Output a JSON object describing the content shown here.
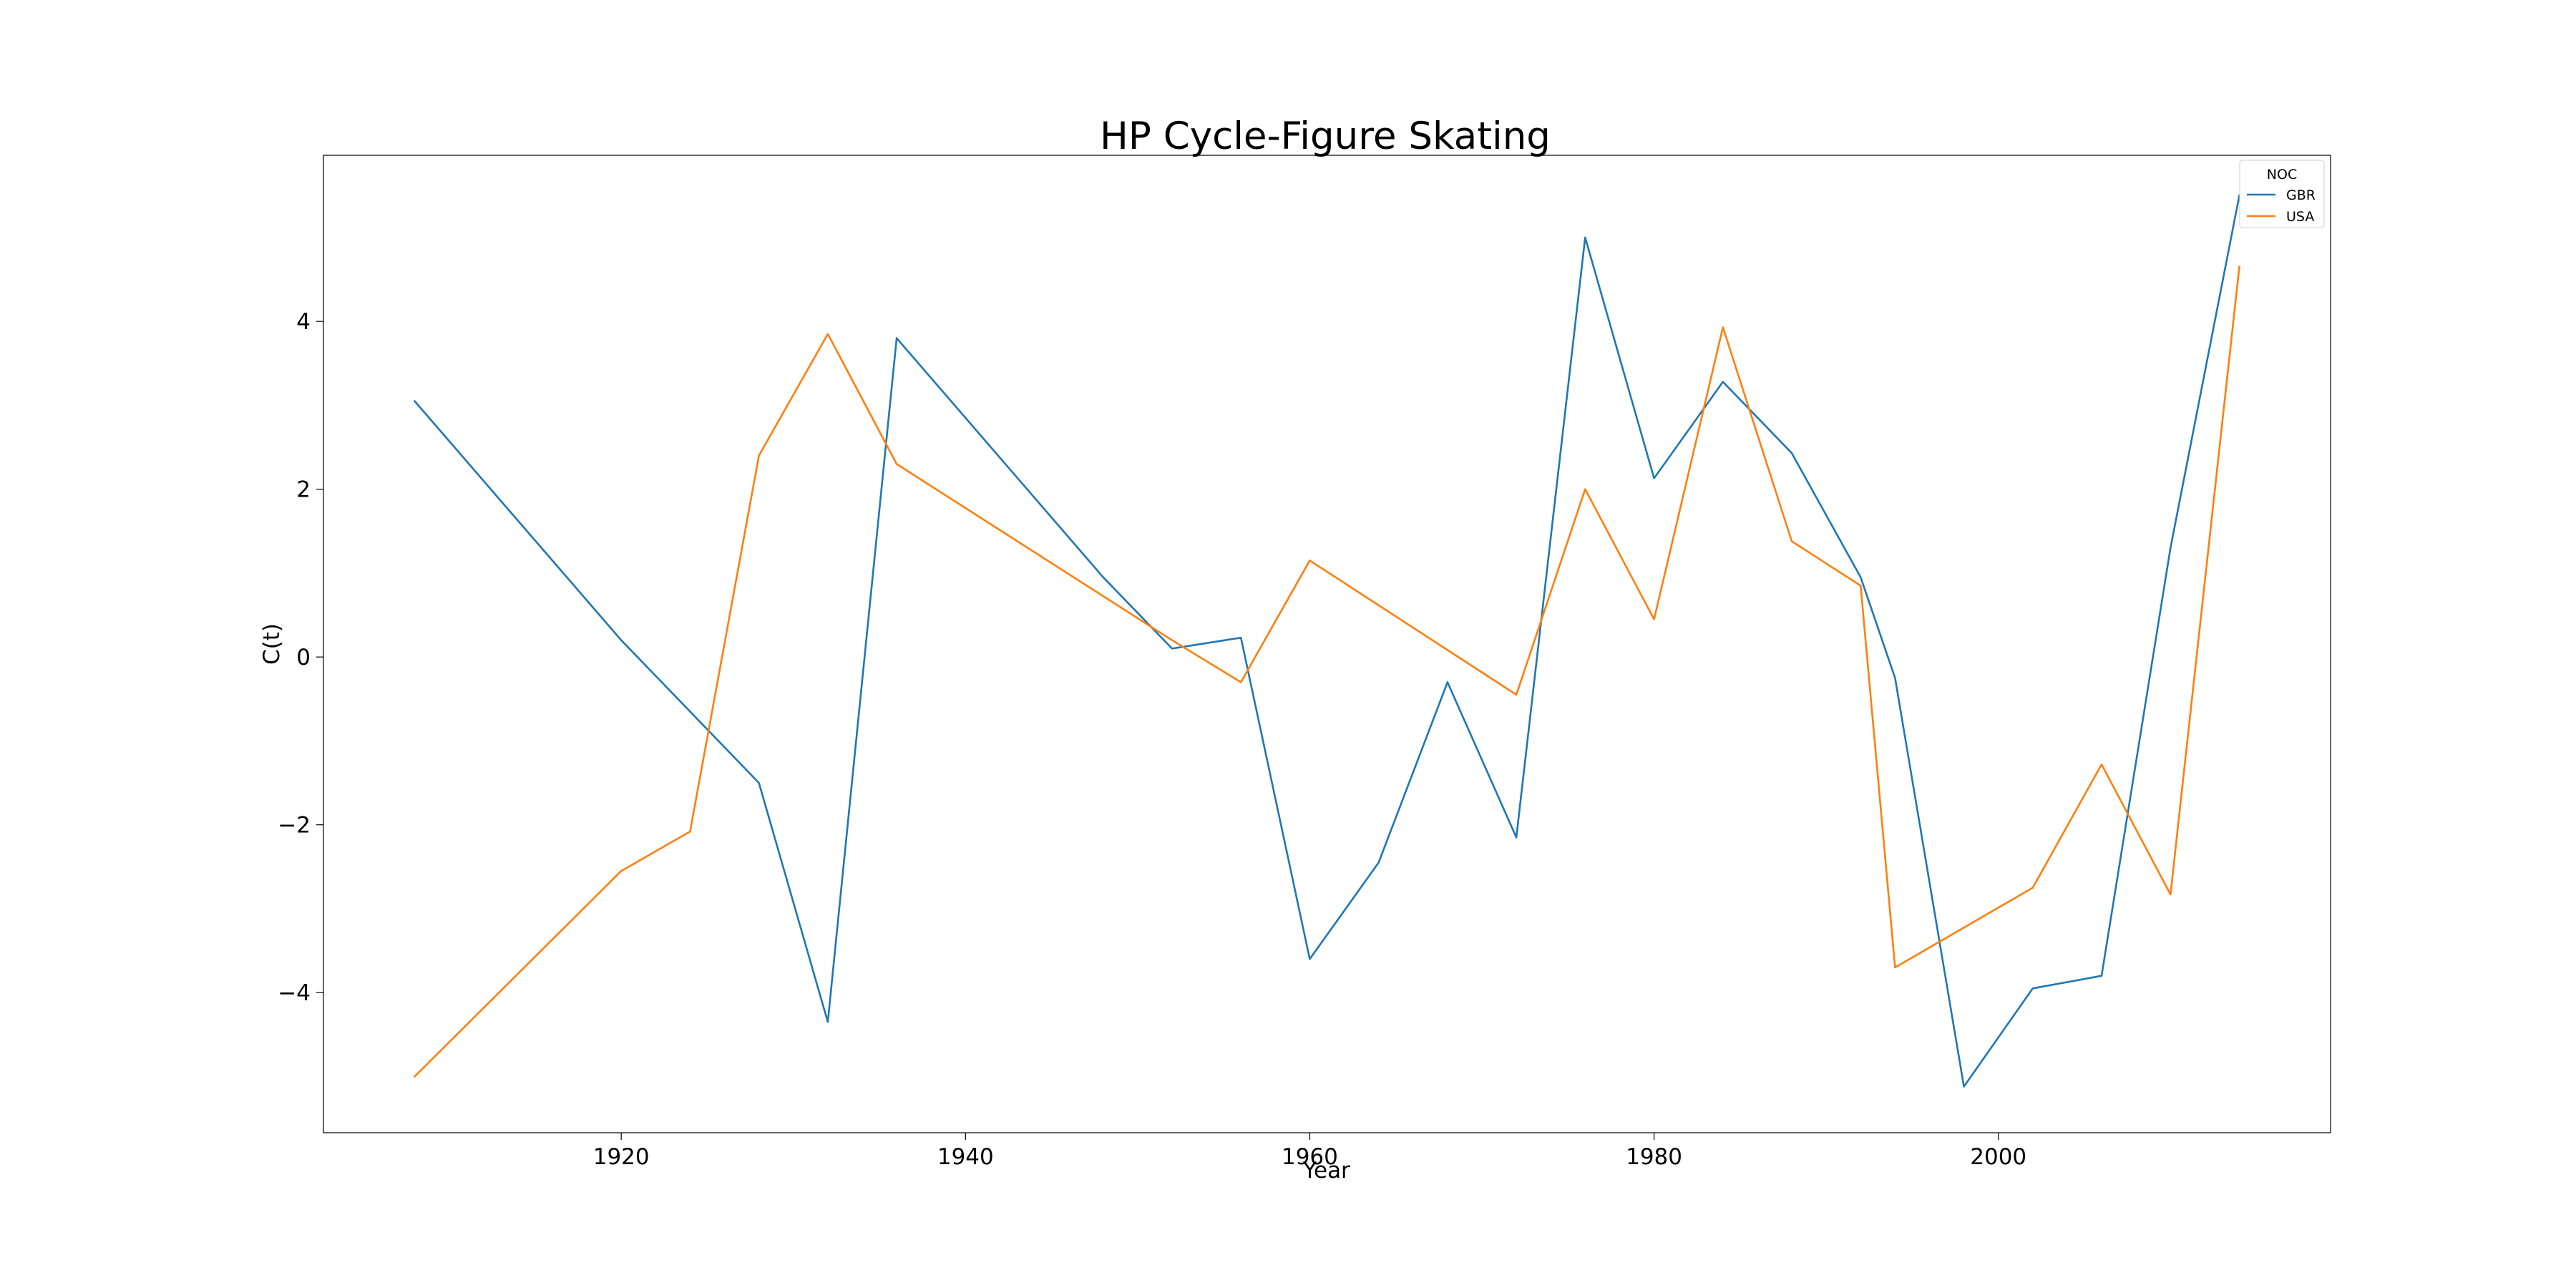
{
  "chart_data": {
    "type": "line",
    "title": "HP Cycle-Figure Skating",
    "xlabel": "Year",
    "ylabel": "C(t)",
    "xlim": [
      1902.7,
      2019.3
    ],
    "ylim": [
      -5.67,
      5.98
    ],
    "xticks": [
      1920,
      1940,
      1960,
      1980,
      2000
    ],
    "yticks": [
      -4,
      -2,
      0,
      2,
      4
    ],
    "xtick_labels": [
      "1920",
      "1940",
      "1960",
      "1980",
      "2000"
    ],
    "ytick_labels": [
      "−4",
      "−2",
      "0",
      "2",
      "4"
    ],
    "grid": false,
    "legend": {
      "title": "NOC",
      "placement": "top-right"
    },
    "series": [
      {
        "name": "GBR",
        "color": "#1f77b4",
        "points": [
          [
            1908,
            3.05
          ],
          [
            1920,
            0.2
          ],
          [
            1928,
            -1.5
          ],
          [
            1932,
            -4.35
          ],
          [
            1936,
            3.8
          ],
          [
            1948,
            0.95
          ],
          [
            1952,
            0.1
          ],
          [
            1956,
            0.23
          ],
          [
            1960,
            -3.6
          ],
          [
            1964,
            -2.45
          ],
          [
            1968,
            -0.3
          ],
          [
            1972,
            -2.15
          ],
          [
            1976,
            5.0
          ],
          [
            1980,
            2.13
          ],
          [
            1984,
            3.28
          ],
          [
            1988,
            2.43
          ],
          [
            1992,
            0.95
          ],
          [
            1994,
            -0.25
          ],
          [
            1998,
            -5.12
          ],
          [
            2002,
            -3.95
          ],
          [
            2006,
            -3.8
          ],
          [
            2010,
            1.3
          ],
          [
            2014,
            5.5
          ]
        ]
      },
      {
        "name": "USA",
        "color": "#ff7f0e",
        "points": [
          [
            1908,
            -5.0
          ],
          [
            1920,
            -2.55
          ],
          [
            1924,
            -2.08
          ],
          [
            1928,
            2.4
          ],
          [
            1932,
            3.85
          ],
          [
            1936,
            2.3
          ],
          [
            1952,
            0.2
          ],
          [
            1956,
            -0.3
          ],
          [
            1960,
            1.15
          ],
          [
            1972,
            -0.45
          ],
          [
            1976,
            2.0
          ],
          [
            1980,
            0.45
          ],
          [
            1984,
            3.93
          ],
          [
            1988,
            1.38
          ],
          [
            1992,
            0.85
          ],
          [
            1994,
            -3.7
          ],
          [
            2002,
            -2.75
          ],
          [
            2006,
            -1.28
          ],
          [
            2010,
            -2.83
          ],
          [
            2014,
            4.65
          ]
        ]
      }
    ]
  }
}
